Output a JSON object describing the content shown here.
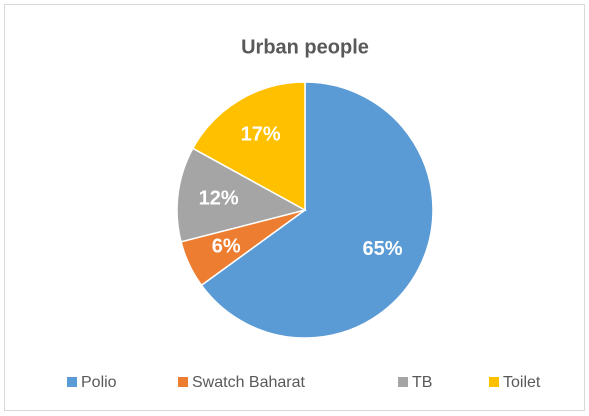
{
  "chart_data": {
    "type": "pie",
    "title": "Urban people",
    "categories": [
      "Polio",
      "Swatch Baharat",
      "TB",
      "Toilet"
    ],
    "values": [
      65,
      6,
      12,
      17
    ],
    "value_labels": [
      "65%",
      "6%",
      "12%",
      "17%"
    ],
    "colors": [
      "#5b9bd5",
      "#ed7d31",
      "#a5a5a5",
      "#ffc000"
    ],
    "legend": "bottom"
  }
}
